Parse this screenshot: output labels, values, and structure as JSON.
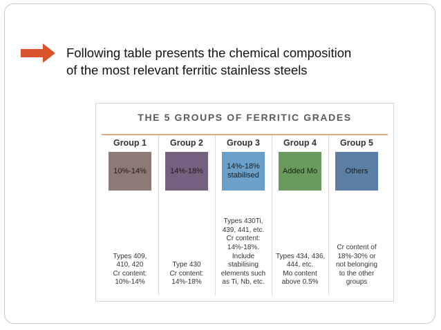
{
  "intro": {
    "lines": [
      "Following table presents the chemical composition",
      "of the most relevant ferritic stainless steels"
    ]
  },
  "figure": {
    "title": "THE 5 GROUPS OF FERRITIC GRADES",
    "groups": [
      {
        "name": "Group 1",
        "label": [
          "10%-14%"
        ],
        "color": "#8e7a74",
        "desc": [
          "Types 409,",
          "410, 420",
          "Cr content:",
          "10%-14%"
        ]
      },
      {
        "name": "Group 2",
        "label": [
          "14%-18%"
        ],
        "color": "#76607f",
        "desc": [
          "Type 430",
          "Cr content:",
          "14%-18%"
        ]
      },
      {
        "name": "Group 3",
        "label": [
          "14%-18%",
          "stabilised"
        ],
        "color": "#6aa0c9",
        "desc": [
          "Types 430Ti,",
          "439, 441, etc.",
          "Cr content:",
          "14%-18%.",
          "Include",
          "stabilising",
          "elements such",
          "as Ti, Nb, etc."
        ]
      },
      {
        "name": "Group 4",
        "label": [
          "Added Mo"
        ],
        "color": "#6a9a5e",
        "desc": [
          "Types 434, 436,",
          "444, etc.",
          "Mo content",
          "above 0.5%"
        ]
      },
      {
        "name": "Group 5",
        "label": [
          "Others"
        ],
        "color": "#5c7fa6",
        "desc": [
          "Cr content of",
          "18%-30% or",
          "not belonging",
          "to the other",
          "groups"
        ]
      }
    ]
  },
  "colors": {
    "arrow": "#d9532b",
    "accent_rule": "#e2a77d"
  }
}
